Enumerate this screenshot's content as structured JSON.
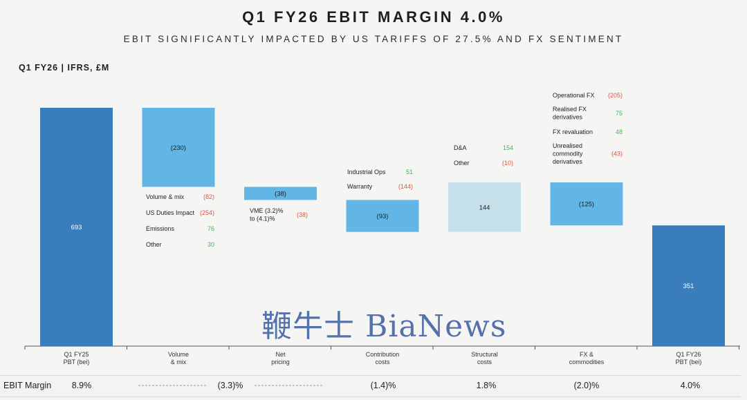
{
  "header": {
    "title": "Q1 FY26 EBIT MARGIN 4.0%",
    "subtitle": "EBIT SIGNIFICANTLY IMPACTED BY US TARIFFS OF 27.5% AND FX SENTIMENT",
    "unit_label": "Q1 FY26 | IFRS, £M"
  },
  "watermark": "鞭牛士 BiaNews",
  "colors": {
    "dark_bar": "#3a7dbd",
    "mid_bar": "#62b6e6",
    "light_bar": "#c6e0ea",
    "negative": "#e0553f",
    "positive": "#4dad5a"
  },
  "chart_data": {
    "type": "bar",
    "subtype": "waterfall",
    "categories": [
      "Q1 FY25\nPBT (bei)",
      "Volume\n& mix",
      "Net\npricing",
      "Contribution\ncosts",
      "Structural\ncosts",
      "FX &\ncommodities",
      "Q1 FY26\nPBT (bei)"
    ],
    "values": [
      693,
      -230,
      -38,
      -93,
      144,
      -125,
      351
    ],
    "value_labels": [
      "693",
      "(230)",
      "(38)",
      "(93)",
      "144",
      "(125)",
      "351"
    ],
    "bar_kinds": [
      "total",
      "delta",
      "delta",
      "delta",
      "delta",
      "delta",
      "total"
    ],
    "breakdowns": [
      [],
      [
        {
          "label": "Volume & mix",
          "value": "(82)",
          "sign": "neg"
        },
        {
          "label": "US Duties Impact",
          "value": "(254)",
          "sign": "neg"
        },
        {
          "label": "Emissions",
          "value": "76",
          "sign": "pos"
        },
        {
          "label": "Other",
          "value": "30",
          "sign": "pos"
        }
      ],
      [
        {
          "label": "VME (3.2)%\nto (4.1)%",
          "value": "(38)",
          "sign": "neg"
        }
      ],
      [
        {
          "label": "Industrial Ops",
          "value": "51",
          "sign": "pos"
        },
        {
          "label": "Warranty",
          "value": "(144)",
          "sign": "neg"
        }
      ],
      [
        {
          "label": "D&A",
          "value": "154",
          "sign": "pos"
        },
        {
          "label": "Other",
          "value": "(10)",
          "sign": "neg"
        }
      ],
      [
        {
          "label": "Operational FX",
          "value": "(205)",
          "sign": "neg"
        },
        {
          "label": "Realised FX\nderivatives",
          "value": "75",
          "sign": "pos"
        },
        {
          "label": "FX revaluation",
          "value": "48",
          "sign": "pos"
        },
        {
          "label": "Unrealised\ncommodity\nderivatives",
          "value": "(43)",
          "sign": "neg"
        }
      ],
      []
    ],
    "ebit_margin": {
      "label": "EBIT Margin",
      "values": [
        "8.9%",
        "(3.3)%",
        "(1.4)%",
        "1.8%",
        "(2.0)%",
        "4.0%"
      ]
    }
  }
}
